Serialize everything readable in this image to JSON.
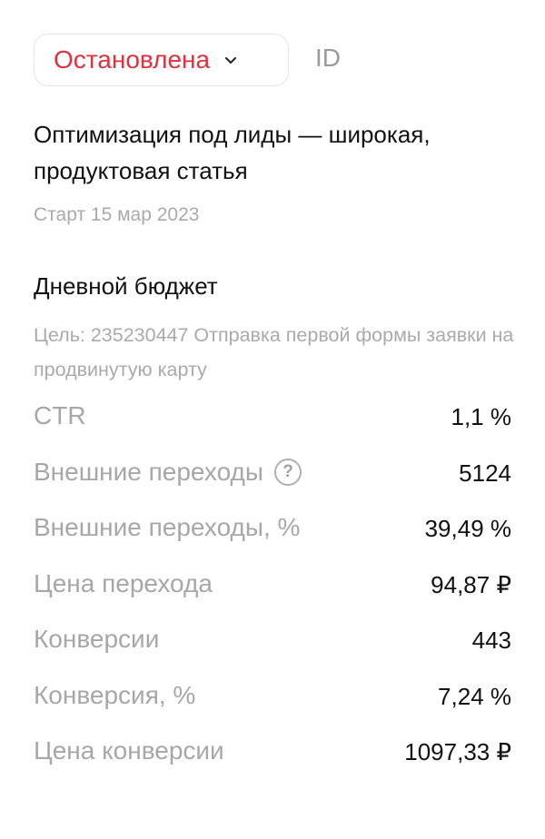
{
  "status": {
    "label": "Остановлена",
    "color": "#e2303f",
    "icon": "chevron-down-icon"
  },
  "id_label": "ID",
  "campaign": {
    "title": "Оптимизация под лиды — широкая, продуктовая статья",
    "start": "Старт 15 мар 2023"
  },
  "budget": {
    "title": "Дневной бюджет",
    "goal": "Цель: 235230447 Отправка первой формы заявки на продвинутую карту"
  },
  "metrics": [
    {
      "label": "CTR",
      "value": "1,1 %"
    },
    {
      "label": "Внешние переходы",
      "value": "5124",
      "help_icon": "question-circle-icon",
      "help_text": "?"
    },
    {
      "label": "Внешние переходы, %",
      "value": "39,49 %"
    },
    {
      "label": "Цена перехода",
      "value": "94,87 ₽"
    },
    {
      "label": "Конверсии",
      "value": "443"
    },
    {
      "label": "Конверсия, %",
      "value": "7,24 %"
    },
    {
      "label": "Цена конверсии",
      "value": "1097,33 ₽"
    }
  ]
}
